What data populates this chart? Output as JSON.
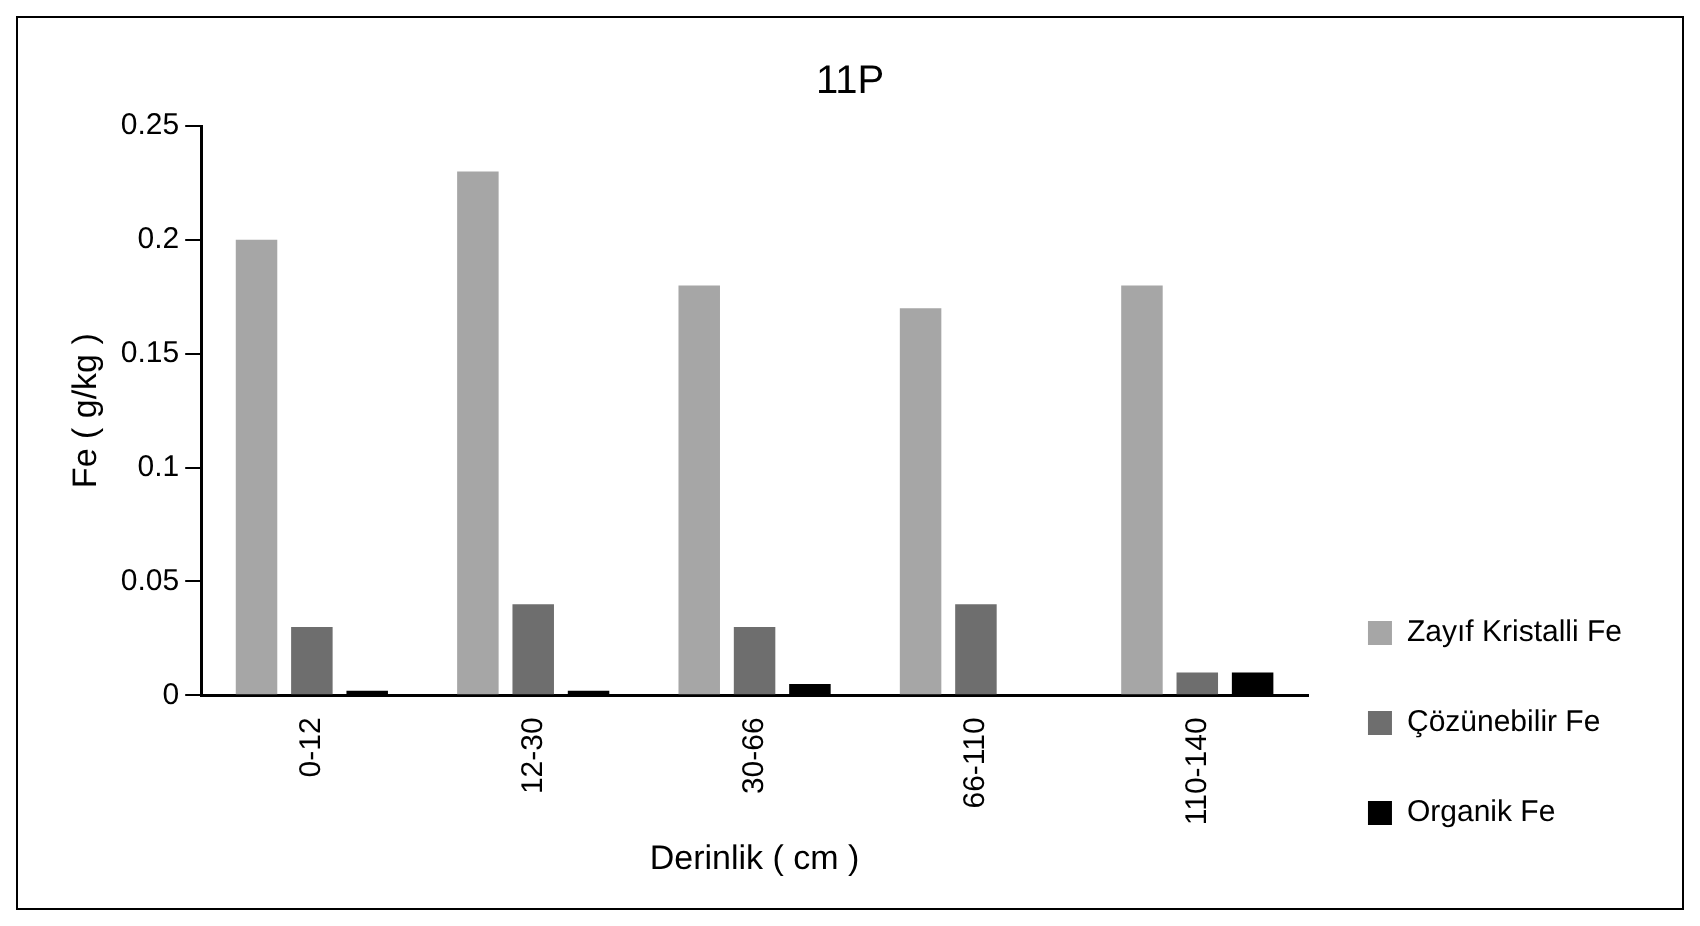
{
  "chart_data": {
    "type": "bar",
    "title": "11P",
    "xlabel": "Derinlik ( cm )",
    "ylabel": "Fe ( g/kg )",
    "categories": [
      "0-12",
      "12-30",
      "30-66",
      "66-110",
      "110-140"
    ],
    "series": [
      {
        "name": "Zayıf Kristalli Fe",
        "color": "#a6a6a6",
        "values": [
          0.2,
          0.23,
          0.18,
          0.17,
          0.18
        ]
      },
      {
        "name": "Çözünebilir Fe",
        "color": "#6e6e6e",
        "values": [
          0.03,
          0.04,
          0.03,
          0.04,
          0.01
        ]
      },
      {
        "name": "Organik Fe",
        "color": "#000000",
        "values": [
          0.002,
          0.002,
          0.005,
          0,
          0.01
        ]
      }
    ],
    "ylim": [
      0,
      0.25
    ],
    "yticks": [
      0,
      0.05,
      0.1,
      0.15,
      0.2,
      0.25
    ],
    "grid": false,
    "legend": "right"
  }
}
